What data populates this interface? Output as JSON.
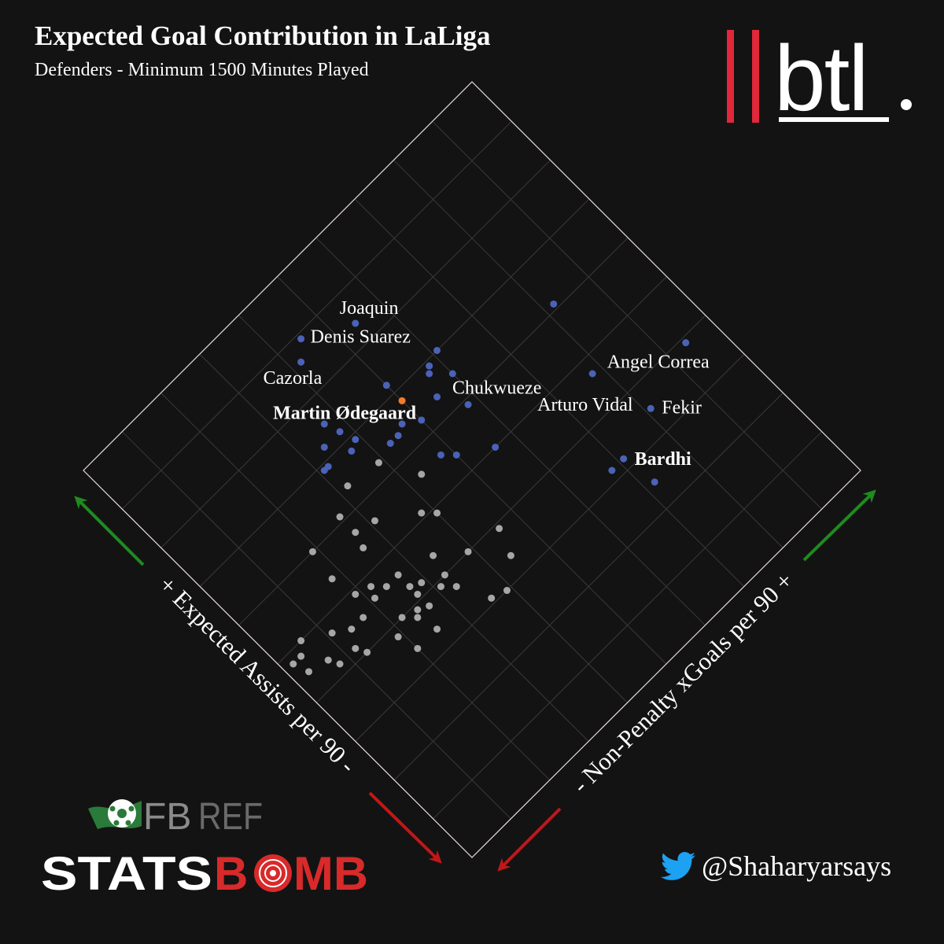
{
  "header": {
    "title": "Expected Goal Contribution in LaLiga",
    "subtitle": "Defenders - Minimum 1500 Minutes Played"
  },
  "branding": {
    "btl_text": "btl",
    "fbref_fb": "FB",
    "fbref_ref": "REF",
    "statsbomb_stats": "STATS",
    "statsbomb_bomb": "B",
    "statsbomb_mb": "MB",
    "twitter_handle": "@Shaharyarsays"
  },
  "colors": {
    "background": "#141313",
    "highlight_dot": "#4a62b8",
    "other_dot": "#a6a6a6",
    "focus_dot": "#f07c2c",
    "arrow_up": "#1e8c1e",
    "arrow_down": "#c01818",
    "btl_red": "#e0283a"
  },
  "chart_data": {
    "type": "scatter",
    "title": "Expected Goal Contribution in LaLiga",
    "subtitle": "Defenders - Minimum 1500 Minutes Played",
    "xlabel": "+ Expected Assists per 90 -",
    "ylabel": "- Non-Penalty xGoals per 90 +",
    "xlim": [
      0,
      10
    ],
    "ylim": [
      0,
      10
    ],
    "grid": true,
    "orientation": "rotated 45 degrees (diamond)",
    "labeled_points": [
      {
        "name": "Angel Correa",
        "x": 3.9,
        "y": 9.4,
        "group": "highlight"
      },
      {
        "name": "Joaquin",
        "x": 8.4,
        "y": 5.4,
        "group": "highlight"
      },
      {
        "name": "Arturo Vidal",
        "x": 4.7,
        "y": 7.8,
        "group": "highlight"
      },
      {
        "name": "Denis Suarez",
        "x": 8.9,
        "y": 4.5,
        "group": "highlight"
      },
      {
        "name": "Cazorla",
        "x": 8.6,
        "y": 4.2,
        "group": "highlight"
      },
      {
        "name": "Chukwueze",
        "x": 5.9,
        "y": 5.8,
        "group": "highlight"
      },
      {
        "name": "Fekir",
        "x": 3.5,
        "y": 8.1,
        "group": "highlight"
      },
      {
        "name": "Martin Ødegaard",
        "x": 6.8,
        "y": 5.0,
        "group": "focus"
      },
      {
        "name": "Bardhi",
        "x": 3.2,
        "y": 7.1,
        "group": "highlight"
      }
    ],
    "other_highlight_points": [
      [
        6.1,
        8.2
      ],
      [
        6.8,
        5.7
      ],
      [
        6.5,
        6.0
      ],
      [
        7.2,
        5.0
      ],
      [
        7.0,
        6.1
      ],
      [
        6.9,
        5.8
      ],
      [
        6.3,
        5.0
      ],
      [
        6.4,
        5.5
      ],
      [
        5.6,
        4.8
      ],
      [
        5.0,
        5.6
      ],
      [
        2.5,
        7.2
      ],
      [
        3.2,
        6.8
      ],
      [
        6.8,
        3.7
      ],
      [
        6.5,
        4.7
      ],
      [
        6.4,
        4.5
      ],
      [
        7.5,
        3.7
      ],
      [
        7.2,
        3.8
      ],
      [
        6.9,
        3.9
      ],
      [
        5.4,
        5.0
      ],
      [
        6.4,
        4.3
      ],
      [
        7.2,
        3.4
      ],
      [
        6.9,
        3.1
      ],
      [
        6.9,
        3.2
      ]
    ],
    "other_points": [
      [
        5.6,
        4.3
      ],
      [
        6.4,
        3.2
      ],
      [
        6.3,
        3.9
      ],
      [
        6.1,
        2.7
      ],
      [
        5.1,
        3.8
      ],
      [
        6.0,
        1.9
      ],
      [
        5.7,
        2.7
      ],
      [
        5.6,
        3.1
      ],
      [
        4.9,
        4.0
      ],
      [
        4.4,
        3.4
      ],
      [
        3.9,
        4.6
      ],
      [
        4.0,
        3.9
      ],
      [
        4.8,
        2.2
      ],
      [
        4.2,
        2.9
      ],
      [
        5.4,
        2.6
      ],
      [
        4.6,
        2.7
      ],
      [
        5.4,
        1.8
      ],
      [
        4.3,
        2.7
      ],
      [
        4.0,
        3.3
      ],
      [
        4.6,
        2.4
      ],
      [
        3.9,
        3.1
      ],
      [
        3.4,
        4.4
      ],
      [
        3.1,
        3.6
      ],
      [
        3.8,
        2.4
      ],
      [
        3.8,
        2.7
      ],
      [
        4.1,
        2.7
      ],
      [
        3.7,
        3.3
      ],
      [
        4.6,
        2.1
      ],
      [
        3.0,
        3.9
      ],
      [
        4.5,
        1.7
      ],
      [
        4.0,
        2.2
      ],
      [
        3.9,
        2.5
      ],
      [
        3.4,
        2.5
      ],
      [
        4.7,
        1.1
      ],
      [
        4.5,
        1.4
      ],
      [
        3.8,
        1.9
      ],
      [
        4.9,
        1.9
      ],
      [
        3.4,
        2.0
      ],
      [
        4.2,
        1.2
      ],
      [
        4.0,
        1.3
      ],
      [
        4.8,
        0.4
      ],
      [
        4.5,
        0.3
      ],
      [
        5.0,
        0.6
      ],
      [
        4.2,
        0.8
      ],
      [
        4.4,
        0.7
      ],
      [
        4.8,
        0.2
      ]
    ]
  }
}
